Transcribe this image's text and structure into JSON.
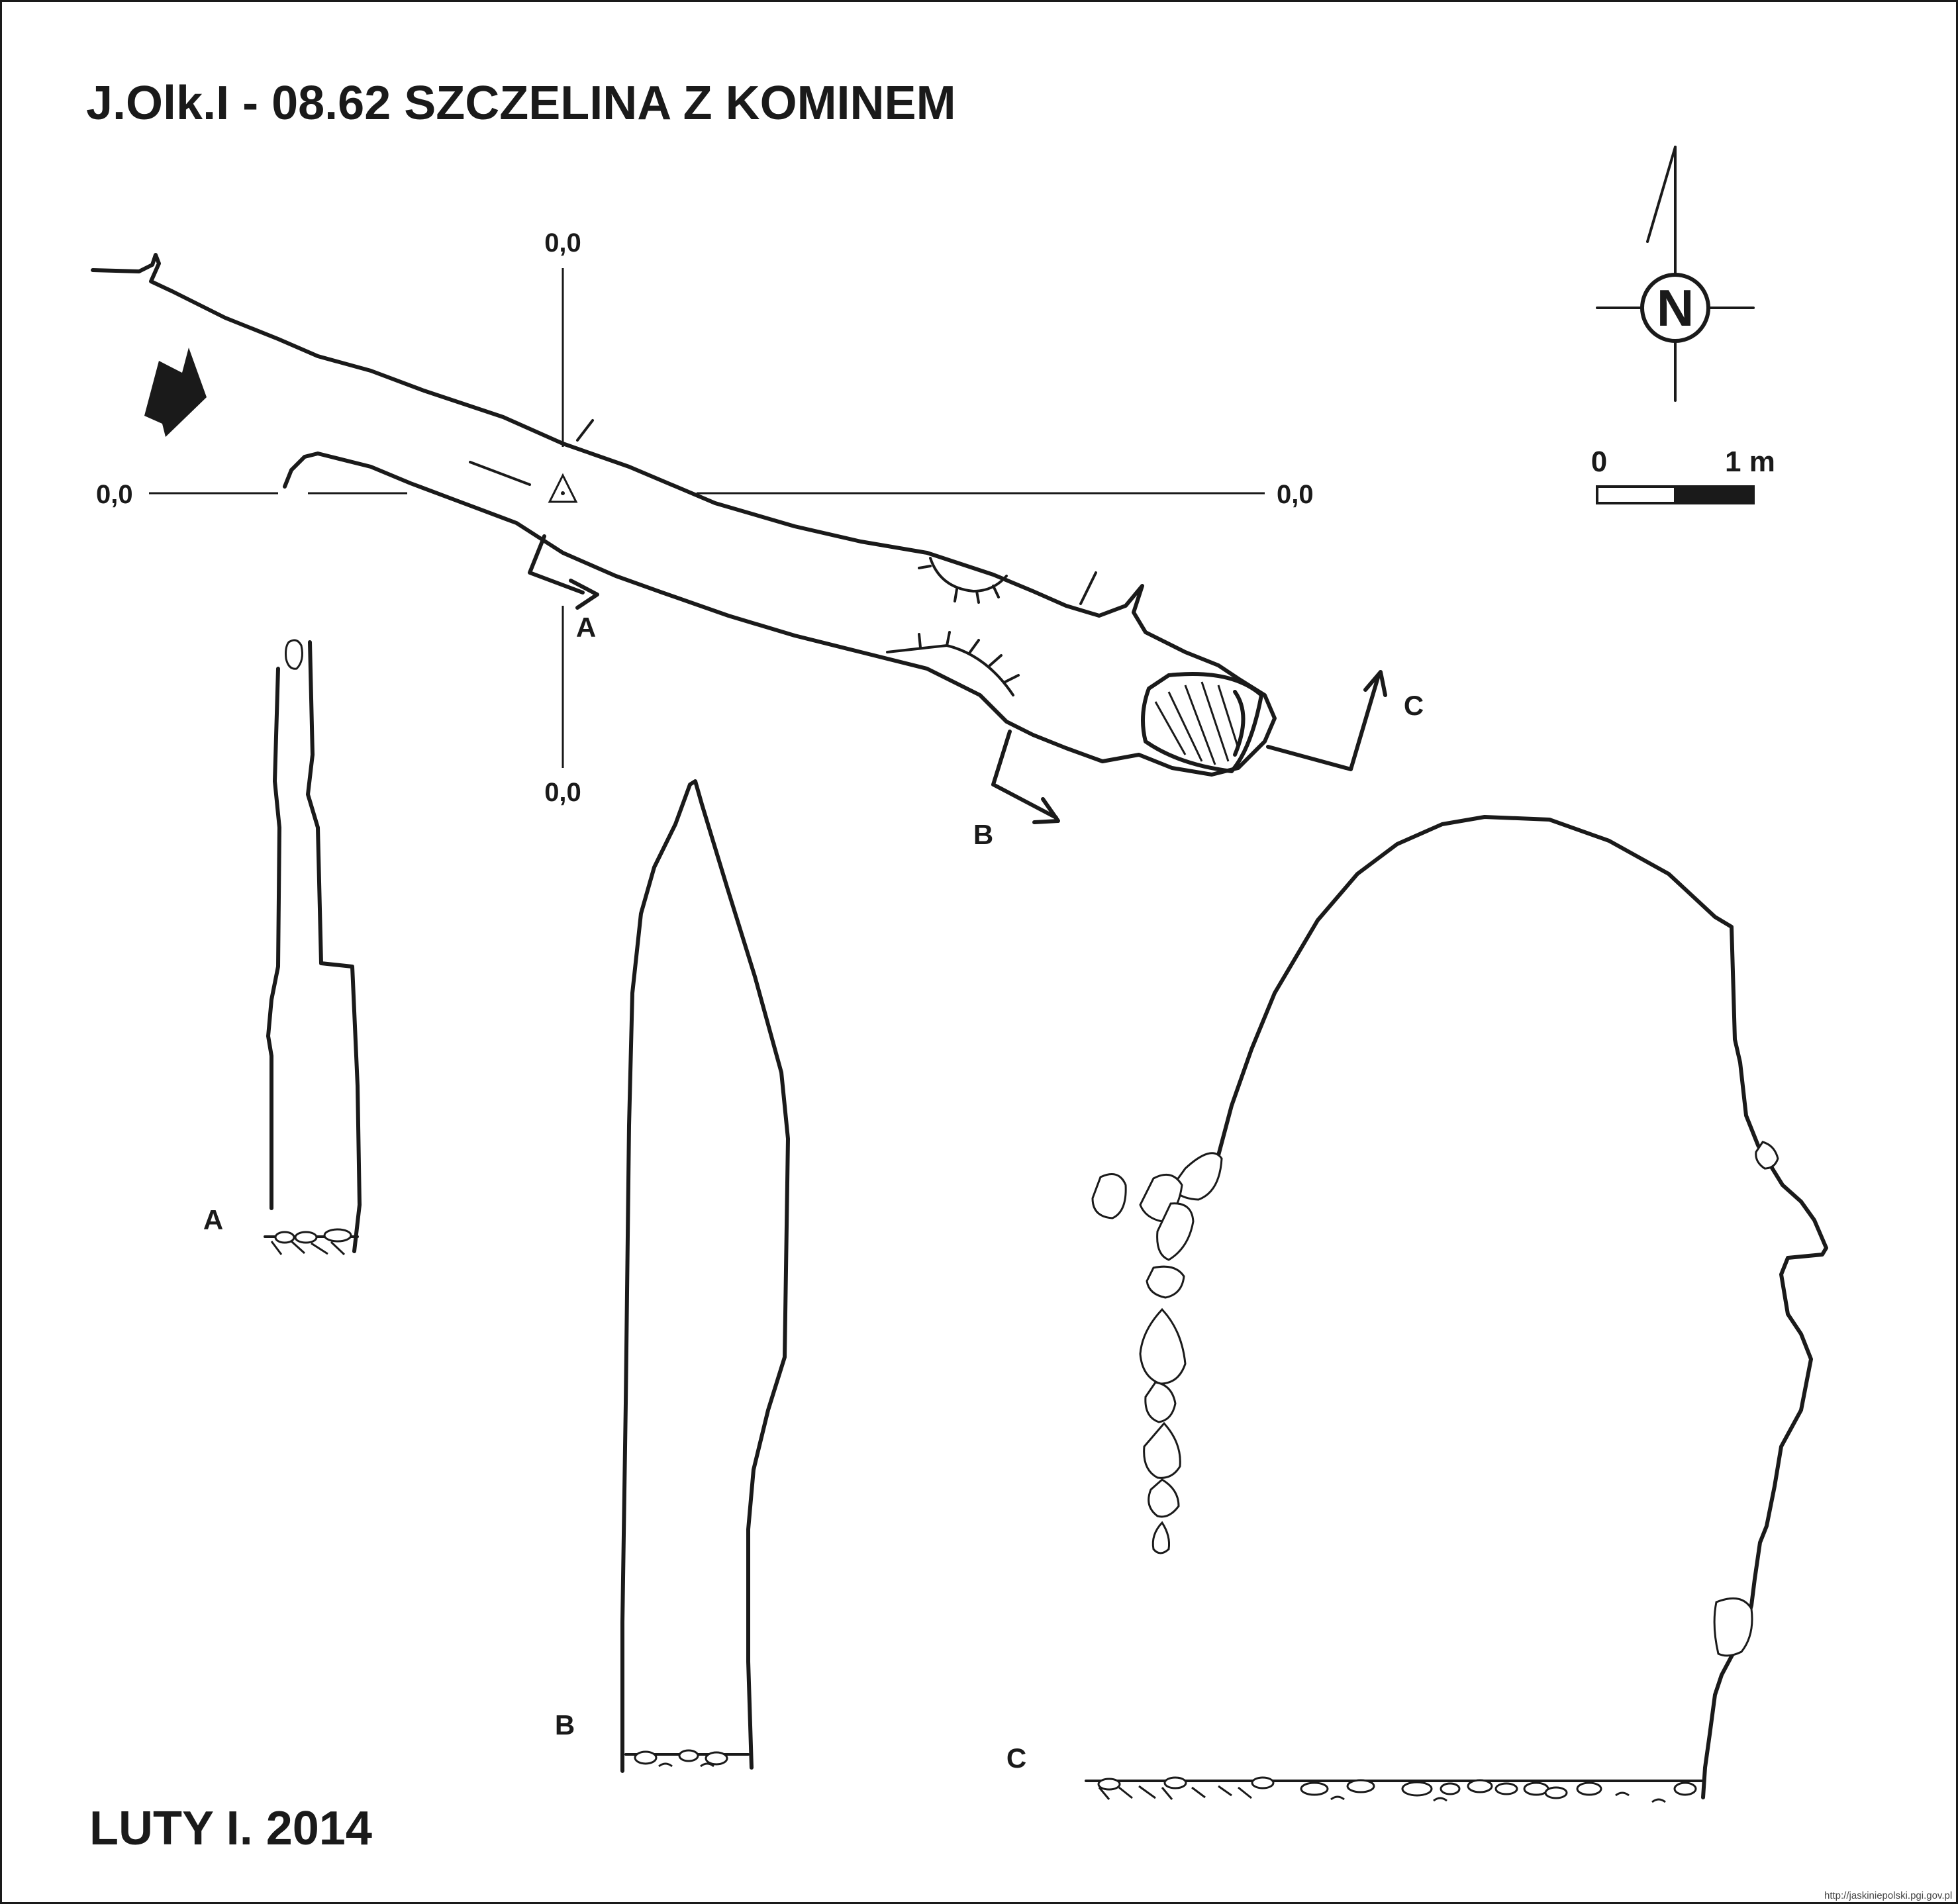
{
  "title": "J.Olk.I - 08.62  SZCZELINA Z KOMINEM",
  "date": "LUTY I. 2014",
  "credit": "http://jaskiniepolski.pgi.gov.pl",
  "coordinate_labels": {
    "top": "0,0",
    "bottom": "0,0",
    "left": "0,0",
    "right": "0,0"
  },
  "compass": {
    "north_label": "N"
  },
  "scale_bar": {
    "start_label": "0",
    "end_label": "1 m"
  },
  "section_markers": {
    "a": "A",
    "b": "B",
    "c": "C"
  },
  "section_labels": {
    "a": "A",
    "b": "B",
    "c": "C"
  },
  "colors": {
    "ink": "#1a1a1a",
    "paper": "#ffffff"
  }
}
